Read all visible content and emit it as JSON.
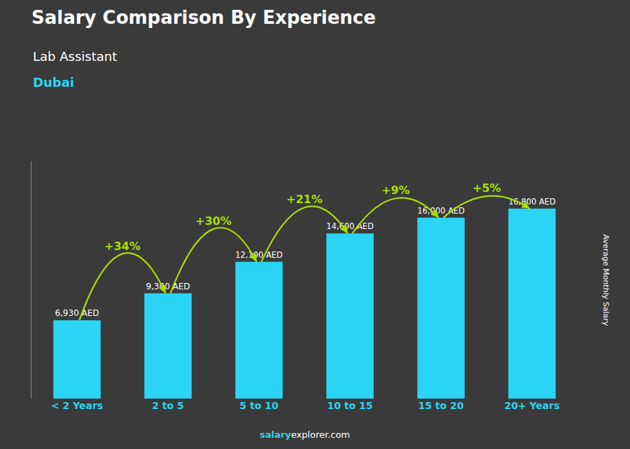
{
  "chart_data": {
    "type": "bar",
    "title": "Salary Comparison By Experience",
    "subtitle": "Lab Assistant",
    "city": "Dubai",
    "ylabel": "Average Monthly Salary",
    "footer": [
      "salary",
      "explorer.com"
    ],
    "categories": [
      "< 2 Years",
      "2 to 5",
      "5 to 10",
      "10 to 15",
      "15 to 20",
      "20+ Years"
    ],
    "values": [
      6930,
      9300,
      12100,
      14600,
      16000,
      16800
    ],
    "value_labels": [
      "6,930 AED",
      "9,300 AED",
      "12,100 AED",
      "14,600 AED",
      "16,000 AED",
      "16,800 AED"
    ],
    "data_labels": true,
    "color": "#29D4F5",
    "ylim": [
      0,
      21000
    ],
    "tick_labels": "x",
    "grid": false,
    "annotations": [
      {
        "text": "+34%",
        "color": "#AADD00"
      },
      {
        "text": "+30%",
        "color": "#AADD00"
      },
      {
        "text": "+21%",
        "color": "#AADD00"
      },
      {
        "text": "+9%",
        "color": "#AADD00"
      },
      {
        "text": "+5%",
        "color": "#AADD00"
      }
    ]
  }
}
